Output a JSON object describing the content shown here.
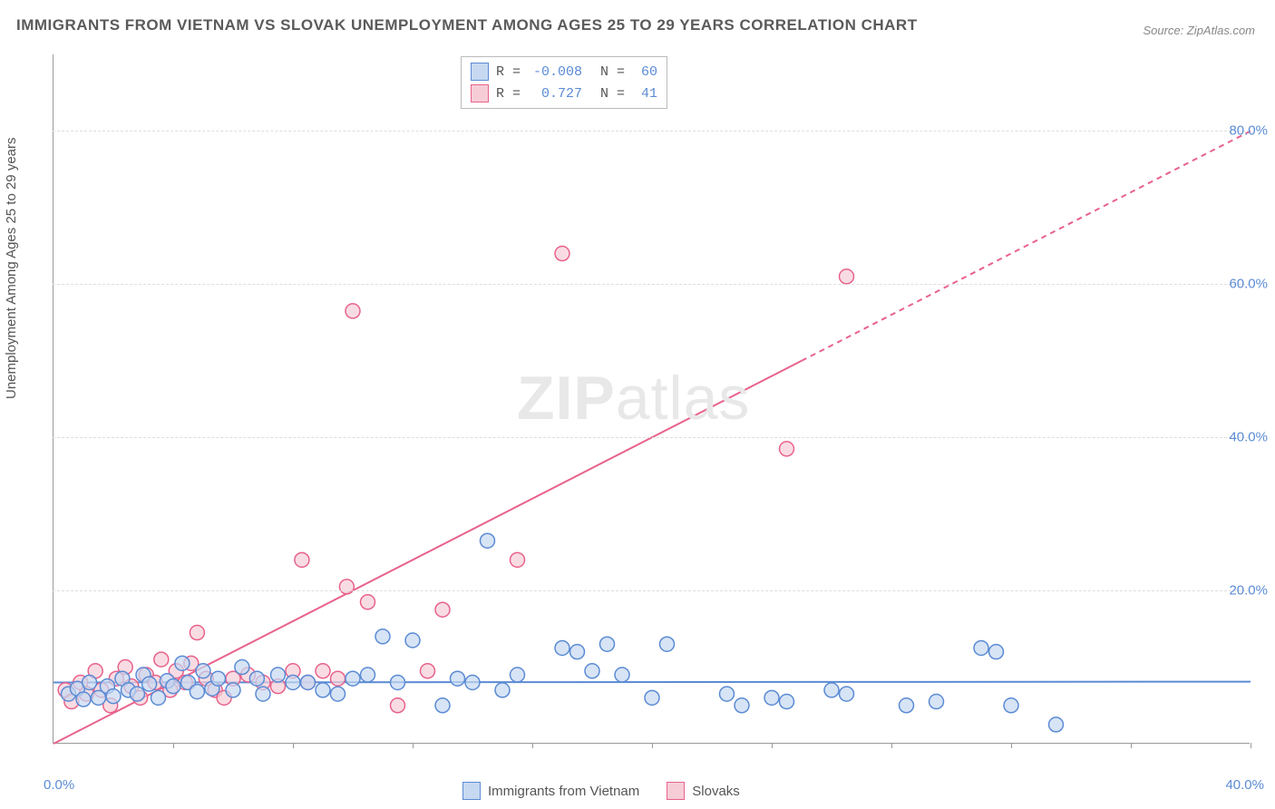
{
  "title": "IMMIGRANTS FROM VIETNAM VS SLOVAK UNEMPLOYMENT AMONG AGES 25 TO 29 YEARS CORRELATION CHART",
  "source": "Source: ZipAtlas.com",
  "ylabel": "Unemployment Among Ages 25 to 29 years",
  "watermark_bold": "ZIP",
  "watermark_rest": "atlas",
  "chart": {
    "type": "scatter",
    "xlim": [
      0.0,
      40.0
    ],
    "ylim": [
      0.0,
      90.0
    ],
    "x_tick_positions": [
      0,
      4,
      8,
      12,
      16,
      20,
      24,
      28,
      32,
      36,
      40
    ],
    "y_grid_positions": [
      20,
      40,
      60,
      80
    ],
    "y_tick_labels": [
      "20.0%",
      "40.0%",
      "60.0%",
      "80.0%"
    ],
    "xlim_labels": [
      "0.0%",
      "40.0%"
    ],
    "background_color": "#ffffff",
    "grid_color": "#dddddd",
    "axis_color": "#999999",
    "tick_label_color": "#5b8bd4",
    "marker_radius": 8,
    "marker_stroke_width": 1.5,
    "line_width": 2,
    "series": [
      {
        "name": "Immigrants from Vietnam",
        "fill": "#c6d9f1",
        "stroke": "#5b8bd4",
        "fill_opacity": 0.7,
        "R": "-0.008",
        "N": "60",
        "trend": {
          "y_at_x0": 8.0,
          "y_at_xmax": 8.1,
          "solid_until_x": 40.0
        },
        "points": [
          [
            0.5,
            6.5
          ],
          [
            0.8,
            7.2
          ],
          [
            1.0,
            5.8
          ],
          [
            1.2,
            8.0
          ],
          [
            1.5,
            6.0
          ],
          [
            1.8,
            7.5
          ],
          [
            2.0,
            6.2
          ],
          [
            2.3,
            8.5
          ],
          [
            2.5,
            7.0
          ],
          [
            2.8,
            6.5
          ],
          [
            3.0,
            9.0
          ],
          [
            3.2,
            7.8
          ],
          [
            3.5,
            6.0
          ],
          [
            3.8,
            8.2
          ],
          [
            4.0,
            7.5
          ],
          [
            4.3,
            10.5
          ],
          [
            4.5,
            8.0
          ],
          [
            4.8,
            6.8
          ],
          [
            5.0,
            9.5
          ],
          [
            5.3,
            7.2
          ],
          [
            5.5,
            8.5
          ],
          [
            6.0,
            7.0
          ],
          [
            6.3,
            10.0
          ],
          [
            6.8,
            8.5
          ],
          [
            7.0,
            6.5
          ],
          [
            7.5,
            9.0
          ],
          [
            8.0,
            8.0
          ],
          [
            8.5,
            8.0
          ],
          [
            9.0,
            7.0
          ],
          [
            9.5,
            6.5
          ],
          [
            10.0,
            8.5
          ],
          [
            10.5,
            9.0
          ],
          [
            11.0,
            14.0
          ],
          [
            11.5,
            8.0
          ],
          [
            12.0,
            13.5
          ],
          [
            13.0,
            5.0
          ],
          [
            13.5,
            8.5
          ],
          [
            14.0,
            8.0
          ],
          [
            14.5,
            26.5
          ],
          [
            15.0,
            7.0
          ],
          [
            15.5,
            9.0
          ],
          [
            17.0,
            12.5
          ],
          [
            17.5,
            12.0
          ],
          [
            18.0,
            9.5
          ],
          [
            18.5,
            13.0
          ],
          [
            19.0,
            9.0
          ],
          [
            20.0,
            6.0
          ],
          [
            20.5,
            13.0
          ],
          [
            22.5,
            6.5
          ],
          [
            23.0,
            5.0
          ],
          [
            24.0,
            6.0
          ],
          [
            24.5,
            5.5
          ],
          [
            26.0,
            7.0
          ],
          [
            26.5,
            6.5
          ],
          [
            28.5,
            5.0
          ],
          [
            29.5,
            5.5
          ],
          [
            31.5,
            12.0
          ],
          [
            32.0,
            5.0
          ],
          [
            33.5,
            2.5
          ],
          [
            31.0,
            12.5
          ]
        ]
      },
      {
        "name": "Slovaks",
        "fill": "#f6cdd7",
        "stroke": "#e8628b",
        "fill_opacity": 0.7,
        "R": "0.727",
        "N": "41",
        "trend": {
          "y_at_x0": 0.0,
          "y_at_xmax": 80.0,
          "solid_until_x": 25.0
        },
        "points": [
          [
            0.4,
            7.0
          ],
          [
            0.6,
            5.5
          ],
          [
            0.9,
            8.0
          ],
          [
            1.1,
            6.5
          ],
          [
            1.4,
            9.5
          ],
          [
            1.6,
            7.0
          ],
          [
            1.9,
            5.0
          ],
          [
            2.1,
            8.5
          ],
          [
            2.4,
            10.0
          ],
          [
            2.6,
            7.5
          ],
          [
            2.9,
            6.0
          ],
          [
            3.1,
            9.0
          ],
          [
            3.4,
            8.0
          ],
          [
            3.6,
            11.0
          ],
          [
            3.9,
            7.0
          ],
          [
            4.1,
            9.5
          ],
          [
            4.4,
            8.0
          ],
          [
            4.6,
            10.5
          ],
          [
            4.8,
            14.5
          ],
          [
            5.1,
            8.5
          ],
          [
            5.4,
            7.0
          ],
          [
            5.7,
            6.0
          ],
          [
            6.0,
            8.5
          ],
          [
            6.5,
            9.0
          ],
          [
            7.0,
            8.0
          ],
          [
            7.5,
            7.5
          ],
          [
            8.0,
            9.5
          ],
          [
            8.3,
            24.0
          ],
          [
            8.5,
            8.0
          ],
          [
            9.0,
            9.5
          ],
          [
            9.5,
            8.5
          ],
          [
            9.8,
            20.5
          ],
          [
            10.0,
            56.5
          ],
          [
            10.5,
            18.5
          ],
          [
            11.5,
            5.0
          ],
          [
            12.5,
            9.5
          ],
          [
            13.0,
            17.5
          ],
          [
            15.5,
            24.0
          ],
          [
            17.0,
            64.0
          ],
          [
            24.5,
            38.5
          ],
          [
            26.5,
            61.0
          ]
        ]
      }
    ]
  },
  "legend_bottom": [
    {
      "label": "Immigrants from Vietnam",
      "fill": "#c6d9f1",
      "stroke": "#5b8bd4"
    },
    {
      "label": "Slovaks",
      "fill": "#f6cdd7",
      "stroke": "#e8628b"
    }
  ]
}
